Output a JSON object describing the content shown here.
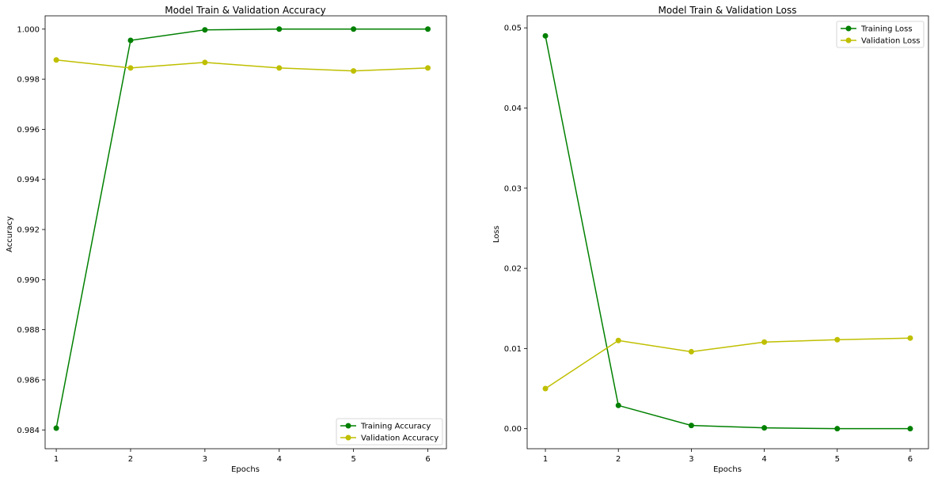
{
  "chart_data": [
    {
      "type": "line",
      "title": "Model Train & Validation Accuracy",
      "xlabel": "Epochs",
      "ylabel": "Accuracy",
      "x": [
        1,
        2,
        3,
        4,
        5,
        6
      ],
      "xlim": [
        0.85,
        6.25
      ],
      "ylim": [
        0.98325,
        1.00053
      ],
      "xticks": [
        1,
        2,
        3,
        4,
        5,
        6
      ],
      "yticks": [
        0.984,
        0.986,
        0.988,
        0.99,
        0.992,
        0.994,
        0.996,
        0.998,
        1.0
      ],
      "ytick_labels": [
        "0.984",
        "0.986",
        "0.988",
        "0.990",
        "0.992",
        "0.994",
        "0.996",
        "0.998",
        "1.000"
      ],
      "grid": false,
      "legend_loc": "lower right",
      "series": [
        {
          "name": "Training Accuracy",
          "color": "#008000",
          "marker": "o",
          "values": [
            0.98407,
            0.99955,
            0.99997,
            1.0,
            1.0,
            1.0
          ]
        },
        {
          "name": "Validation Accuracy",
          "color": "#bfbf00",
          "marker": "o",
          "values": [
            0.99877,
            0.99845,
            0.99867,
            0.99845,
            0.99833,
            0.99845
          ]
        }
      ]
    },
    {
      "type": "line",
      "title": "Model Train & Validation Loss",
      "xlabel": "Epochs",
      "ylabel": "Loss",
      "x": [
        1,
        2,
        3,
        4,
        5,
        6
      ],
      "xlim": [
        0.75,
        6.25
      ],
      "ylim": [
        -0.0025,
        0.0515
      ],
      "xticks": [
        1,
        2,
        3,
        4,
        5,
        6
      ],
      "yticks": [
        0.0,
        0.01,
        0.02,
        0.03,
        0.04,
        0.05
      ],
      "ytick_labels": [
        "0.00",
        "0.01",
        "0.02",
        "0.03",
        "0.04",
        "0.05"
      ],
      "grid": false,
      "legend_loc": "upper right",
      "series": [
        {
          "name": "Training Loss",
          "color": "#008000",
          "marker": "o",
          "values": [
            0.049,
            0.0029,
            0.0004,
            0.0001,
            0.0,
            0.0
          ]
        },
        {
          "name": "Validation Loss",
          "color": "#bfbf00",
          "marker": "o",
          "values": [
            0.005,
            0.011,
            0.0096,
            0.0108,
            0.0111,
            0.0113
          ]
        }
      ]
    }
  ]
}
